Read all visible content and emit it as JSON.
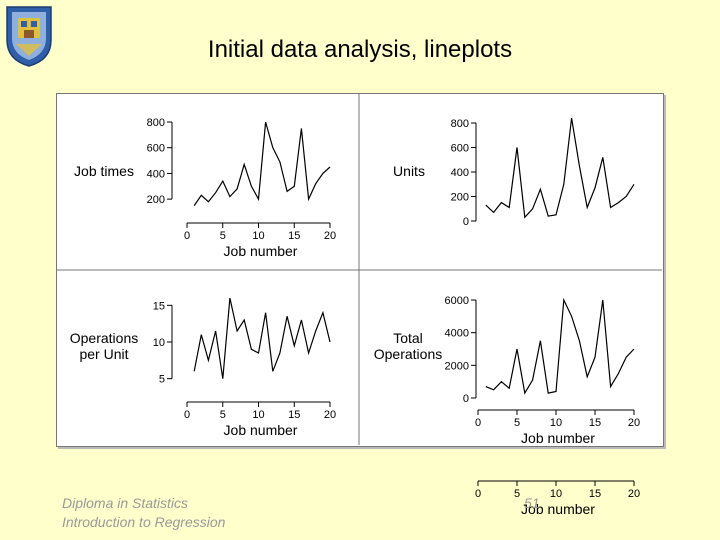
{
  "slide": {
    "title": "Initial data analysis, lineplots",
    "footer_line1": "Diploma in Statistics",
    "footer_line2": "Introduction to Regression",
    "page_number": "51"
  },
  "colors": {
    "background": "#ffffcc",
    "line": "#000000",
    "crest_blue": "#2e5fa8",
    "crest_gold": "#e0c040"
  },
  "chart_data": [
    {
      "type": "line",
      "xlabel": "Job number",
      "ylabel": "Job times",
      "xticks": [
        0,
        5,
        10,
        15,
        20
      ],
      "yticks": [
        200,
        400,
        600,
        800
      ],
      "xlim": [
        0,
        20
      ],
      "ylim": [
        100,
        800
      ],
      "x": [
        1,
        2,
        3,
        4,
        5,
        6,
        7,
        8,
        9,
        10,
        11,
        12,
        13,
        14,
        15,
        16,
        17,
        18,
        19,
        20
      ],
      "y": [
        150,
        230,
        180,
        250,
        340,
        220,
        280,
        470,
        300,
        200,
        800,
        600,
        490,
        260,
        300,
        750,
        200,
        320,
        400,
        450
      ]
    },
    {
      "type": "line",
      "xlabel": "Job number",
      "ylabel": "Units",
      "xticks": [
        0,
        5,
        10,
        15,
        20
      ],
      "yticks": [
        0,
        200,
        400,
        600,
        800
      ],
      "xlim": [
        0,
        20
      ],
      "ylim": [
        0,
        800
      ],
      "x": [
        1,
        2,
        3,
        4,
        5,
        6,
        7,
        8,
        9,
        10,
        11,
        12,
        13,
        14,
        15,
        16,
        17,
        18,
        19,
        20
      ],
      "y": [
        130,
        70,
        150,
        110,
        600,
        30,
        100,
        260,
        40,
        50,
        300,
        840,
        450,
        110,
        270,
        520,
        110,
        150,
        200,
        300
      ]
    },
    {
      "type": "line",
      "xlabel": "Job number",
      "ylabel": "Operations per Unit",
      "xticks": [
        0,
        5,
        10,
        15,
        20
      ],
      "yticks": [
        5,
        10,
        15
      ],
      "xlim": [
        0,
        20
      ],
      "ylim": [
        4,
        16
      ],
      "x": [
        1,
        2,
        3,
        4,
        5,
        6,
        7,
        8,
        9,
        10,
        11,
        12,
        13,
        14,
        15,
        16,
        17,
        18,
        19,
        20
      ],
      "y": [
        6,
        11,
        7.5,
        11.5,
        5,
        16,
        11.5,
        13,
        9,
        8.5,
        14,
        6,
        8.5,
        13.5,
        9.5,
        13,
        8.5,
        11.5,
        14,
        10
      ]
    },
    {
      "type": "line",
      "xlabel": "Job number",
      "ylabel": "Total Operations",
      "xticks": [
        0,
        5,
        10,
        15,
        20
      ],
      "yticks": [
        0,
        2000,
        4000,
        6000
      ],
      "xlim": [
        0,
        20
      ],
      "ylim": [
        0,
        6000
      ],
      "x": [
        1,
        2,
        3,
        4,
        5,
        6,
        7,
        8,
        9,
        10,
        11,
        12,
        13,
        14,
        15,
        16,
        17,
        18,
        19,
        20
      ],
      "y": [
        700,
        500,
        1000,
        600,
        3000,
        300,
        1100,
        3500,
        300,
        400,
        6000,
        5000,
        3500,
        1300,
        2500,
        6000,
        700,
        1500,
        2500,
        3000
      ]
    }
  ]
}
